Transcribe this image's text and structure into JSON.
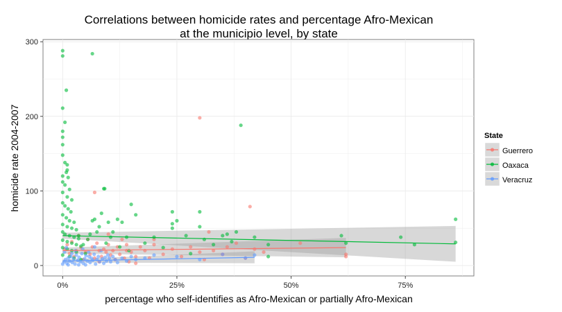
{
  "chart_data": {
    "type": "scatter",
    "title": "Correlations between homicide rates and percentage Afro-Mexican",
    "subtitle": "at the municipio level, by state",
    "xlabel": "percentage who self-identifies as Afro-Mexican or partially Afro-Mexican",
    "ylabel": "homicide rate 2004-2007",
    "xlim": [
      -0.043,
      0.9
    ],
    "ylim": [
      -14,
      303
    ],
    "x_ticks": [
      0,
      0.25,
      0.5,
      0.75
    ],
    "x_tick_labels": [
      "0%",
      "25%",
      "50%",
      "75%"
    ],
    "y_ticks": [
      0,
      100,
      200,
      300
    ],
    "y_tick_labels": [
      "0",
      "100",
      "200",
      "300"
    ],
    "grid": true,
    "legend": {
      "title": "State",
      "position": "right",
      "entries": [
        "Guerrero",
        "Oaxaca",
        "Veracruz"
      ]
    },
    "colors": {
      "Guerrero": "#F8766D",
      "Oaxaca": "#00BA38",
      "Veracruz": "#619CFF",
      "band": "#999999",
      "panel_border": "#7f7f7f",
      "grid": "#ececec"
    },
    "series": [
      {
        "name": "Guerrero",
        "color": "#F8766D",
        "points": [
          [
            0.005,
            22
          ],
          [
            0.01,
            28
          ],
          [
            0.015,
            16
          ],
          [
            0.02,
            32
          ],
          [
            0.025,
            12
          ],
          [
            0.03,
            20
          ],
          [
            0.035,
            40
          ],
          [
            0.04,
            24
          ],
          [
            0.045,
            8
          ],
          [
            0.05,
            18
          ],
          [
            0.055,
            35
          ],
          [
            0.06,
            15
          ],
          [
            0.065,
            25
          ],
          [
            0.07,
            10
          ],
          [
            0.075,
            30
          ],
          [
            0.08,
            20
          ],
          [
            0.085,
            12
          ],
          [
            0.09,
            22
          ],
          [
            0.095,
            18
          ],
          [
            0.1,
            28
          ],
          [
            0.105,
            14
          ],
          [
            0.11,
            20
          ],
          [
            0.115,
            8
          ],
          [
            0.12,
            25
          ],
          [
            0.125,
            15
          ],
          [
            0.13,
            35
          ],
          [
            0.135,
            10
          ],
          [
            0.14,
            20
          ],
          [
            0.145,
            5
          ],
          [
            0.15,
            18
          ],
          [
            0.16,
            12
          ],
          [
            0.17,
            25
          ],
          [
            0.18,
            20
          ],
          [
            0.19,
            10
          ],
          [
            0.2,
            28
          ],
          [
            0.22,
            15
          ],
          [
            0.24,
            22
          ],
          [
            0.26,
            12
          ],
          [
            0.28,
            25
          ],
          [
            0.3,
            18
          ],
          [
            0.31,
            8
          ],
          [
            0.33,
            20
          ],
          [
            0.35,
            15
          ],
          [
            0.36,
            25
          ],
          [
            0.38,
            30
          ],
          [
            0.4,
            10
          ],
          [
            0.42,
            22
          ],
          [
            0.44,
            18
          ],
          [
            0.52,
            30
          ],
          [
            0.62,
            12
          ],
          [
            0.62,
            15
          ],
          [
            0.3,
            198
          ],
          [
            0.41,
            79
          ],
          [
            0.07,
            98
          ],
          [
            0.14,
            28
          ],
          [
            0.1,
            42
          ],
          [
            0.2,
            35
          ],
          [
            0.08,
            5
          ],
          [
            0.32,
            45
          ],
          [
            0.16,
            3
          ]
        ],
        "fit": {
          "x": [
            0,
            0.62
          ],
          "y": [
            20,
            24
          ],
          "band_halfwidth": [
            4,
            13
          ]
        }
      },
      {
        "name": "Oaxaca",
        "color": "#00BA38",
        "points": [
          [
            0.0,
            288
          ],
          [
            0.0,
            281
          ],
          [
            0.008,
            235
          ],
          [
            0.0,
            211
          ],
          [
            0.005,
            192
          ],
          [
            0.0,
            180
          ],
          [
            0.0,
            172
          ],
          [
            0.0,
            162
          ],
          [
            0.0,
            148
          ],
          [
            0.005,
            138
          ],
          [
            0.01,
            135
          ],
          [
            0.008,
            125
          ],
          [
            0.012,
            118
          ],
          [
            0.0,
            112
          ],
          [
            0.005,
            108
          ],
          [
            0.015,
            102
          ],
          [
            0.0,
            98
          ],
          [
            0.01,
            92
          ],
          [
            0.02,
            88
          ],
          [
            0.0,
            84
          ],
          [
            0.005,
            80
          ],
          [
            0.012,
            76
          ],
          [
            0.018,
            72
          ],
          [
            0.0,
            68
          ],
          [
            0.008,
            64
          ],
          [
            0.015,
            60
          ],
          [
            0.025,
            58
          ],
          [
            0.0,
            55
          ],
          [
            0.01,
            52
          ],
          [
            0.02,
            50
          ],
          [
            0.03,
            48
          ],
          [
            0.0,
            45
          ],
          [
            0.005,
            42
          ],
          [
            0.015,
            40
          ],
          [
            0.025,
            38
          ],
          [
            0.035,
            36
          ],
          [
            0.0,
            34
          ],
          [
            0.01,
            32
          ],
          [
            0.02,
            30
          ],
          [
            0.03,
            28
          ],
          [
            0.04,
            26
          ],
          [
            0.0,
            24
          ],
          [
            0.01,
            22
          ],
          [
            0.02,
            20
          ],
          [
            0.03,
            18
          ],
          [
            0.05,
            16
          ],
          [
            0.0,
            14
          ],
          [
            0.015,
            12
          ],
          [
            0.025,
            10
          ],
          [
            0.04,
            8
          ],
          [
            0.06,
            42
          ],
          [
            0.065,
            60
          ],
          [
            0.07,
            62
          ],
          [
            0.08,
            52
          ],
          [
            0.085,
            70
          ],
          [
            0.09,
            103
          ],
          [
            0.092,
            103
          ],
          [
            0.1,
            58
          ],
          [
            0.11,
            45
          ],
          [
            0.12,
            62
          ],
          [
            0.13,
            58
          ],
          [
            0.14,
            38
          ],
          [
            0.145,
            20
          ],
          [
            0.15,
            82
          ],
          [
            0.16,
            68
          ],
          [
            0.18,
            30
          ],
          [
            0.2,
            38
          ],
          [
            0.22,
            24
          ],
          [
            0.24,
            72
          ],
          [
            0.24,
            56
          ],
          [
            0.24,
            50
          ],
          [
            0.25,
            60
          ],
          [
            0.27,
            40
          ],
          [
            0.28,
            16
          ],
          [
            0.3,
            72
          ],
          [
            0.3,
            52
          ],
          [
            0.31,
            35
          ],
          [
            0.33,
            28
          ],
          [
            0.35,
            40
          ],
          [
            0.36,
            42
          ],
          [
            0.37,
            32
          ],
          [
            0.38,
            45
          ],
          [
            0.39,
            188
          ],
          [
            0.42,
            38
          ],
          [
            0.45,
            28
          ],
          [
            0.45,
            12
          ],
          [
            0.61,
            40
          ],
          [
            0.62,
            30
          ],
          [
            0.74,
            38
          ],
          [
            0.77,
            28
          ],
          [
            0.86,
            62
          ],
          [
            0.86,
            31
          ],
          [
            0.065,
            284
          ],
          [
            0.035,
            40
          ],
          [
            0.045,
            28
          ],
          [
            0.055,
            35
          ],
          [
            0.075,
            45
          ],
          [
            0.095,
            30
          ],
          [
            0.105,
            38
          ],
          [
            0.125,
            25
          ],
          [
            0.0,
            120
          ],
          [
            0.01,
            128
          ]
        ],
        "fit": {
          "x": [
            0,
            0.86
          ],
          "y": [
            40,
            29
          ],
          "band_halfwidth": [
            4,
            24
          ]
        }
      },
      {
        "name": "Veracruz",
        "color": "#619CFF",
        "points": [
          [
            0.0,
            2
          ],
          [
            0.003,
            5
          ],
          [
            0.006,
            8
          ],
          [
            0.009,
            3
          ],
          [
            0.012,
            10
          ],
          [
            0.015,
            6
          ],
          [
            0.018,
            12
          ],
          [
            0.021,
            4
          ],
          [
            0.024,
            9
          ],
          [
            0.027,
            2
          ],
          [
            0.03,
            14
          ],
          [
            0.033,
            7
          ],
          [
            0.036,
            11
          ],
          [
            0.039,
            5
          ],
          [
            0.042,
            16
          ],
          [
            0.045,
            3
          ],
          [
            0.048,
            9
          ],
          [
            0.051,
            13
          ],
          [
            0.054,
            6
          ],
          [
            0.057,
            18
          ],
          [
            0.06,
            4
          ],
          [
            0.063,
            10
          ],
          [
            0.066,
            7
          ],
          [
            0.069,
            15
          ],
          [
            0.072,
            2
          ],
          [
            0.075,
            8
          ],
          [
            0.078,
            12
          ],
          [
            0.081,
            5
          ],
          [
            0.084,
            20
          ],
          [
            0.087,
            9
          ],
          [
            0.09,
            3
          ],
          [
            0.093,
            11
          ],
          [
            0.096,
            6
          ],
          [
            0.099,
            14
          ],
          [
            0.102,
            10
          ],
          [
            0.105,
            5
          ],
          [
            0.11,
            12
          ],
          [
            0.115,
            8
          ],
          [
            0.12,
            4
          ],
          [
            0.13,
            10
          ],
          [
            0.14,
            6
          ],
          [
            0.15,
            12
          ],
          [
            0.16,
            8
          ],
          [
            0.18,
            10
          ],
          [
            0.2,
            14
          ],
          [
            0.25,
            12
          ],
          [
            0.3,
            8
          ],
          [
            0.35,
            15
          ],
          [
            0.4,
            10
          ],
          [
            0.42,
            14
          ],
          [
            0.004,
            18
          ],
          [
            0.008,
            24
          ],
          [
            0.012,
            1
          ],
          [
            0.02,
            16
          ],
          [
            0.028,
            20
          ],
          [
            0.035,
            1
          ],
          [
            0.044,
            22
          ],
          [
            0.05,
            1
          ],
          [
            0.058,
            12
          ],
          [
            0.07,
            25
          ]
        ],
        "fit": {
          "x": [
            0,
            0.42
          ],
          "y": [
            6,
            11
          ],
          "band_halfwidth": [
            2,
            8
          ]
        }
      }
    ]
  }
}
